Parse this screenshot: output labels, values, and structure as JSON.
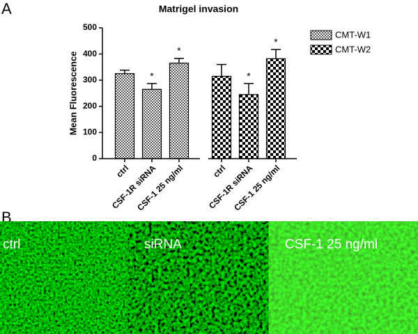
{
  "panels": [
    "A",
    "B"
  ],
  "chart_data": {
    "type": "bar",
    "title": "Matrigel invasion",
    "y_label": "Mean Fluorescence",
    "categories": [
      "ctrl",
      "CSF-1R siRNA",
      "CSF-1 25 ng/ml"
    ],
    "series": [
      {
        "name": "CMT-W1",
        "color": "#555555",
        "values": [
          325,
          265,
          365
        ],
        "errors": [
          13,
          22,
          18
        ],
        "annotations": [
          null,
          "*",
          "*"
        ]
      },
      {
        "name": "CMT-W2",
        "color": "#000000",
        "values": [
          315,
          245,
          382
        ],
        "errors": [
          45,
          42,
          35
        ],
        "annotations": [
          null,
          "*",
          "*"
        ]
      }
    ],
    "ylim": [
      0,
      500
    ],
    "yticks": [
      0,
      100,
      200,
      300,
      400,
      500
    ],
    "legend": "upper right"
  },
  "images": [
    {
      "label": "ctrl"
    },
    {
      "label": "siRNA"
    },
    {
      "label": "CSF-1 25 ng/ml"
    }
  ]
}
